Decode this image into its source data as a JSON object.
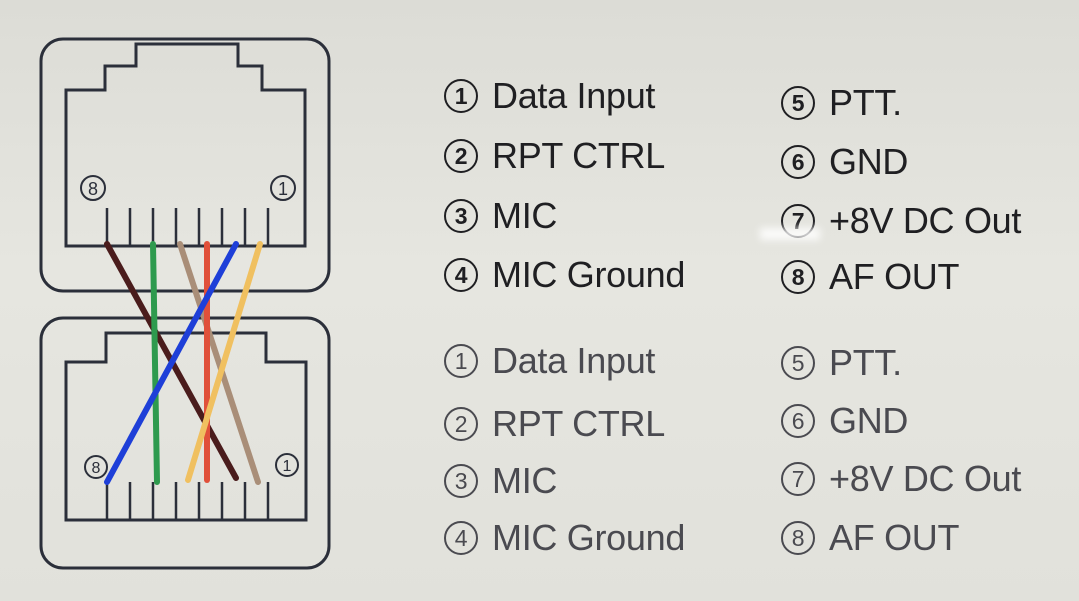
{
  "colors": {
    "background": "#e2e2dc",
    "outline": "#2b2f3a",
    "wire_dark_brown": "#4a1c1c",
    "wire_green": "#2e9a4e",
    "wire_tan": "#a98e78",
    "wire_red": "#e0503a",
    "wire_blue": "#1e3fd8",
    "wire_yellow": "#f0c060"
  },
  "connectors": [
    {
      "id": "top",
      "pin_left": "8",
      "pin_right": "1"
    },
    {
      "id": "bottom",
      "pin_left": "8",
      "pin_right": "1"
    }
  ],
  "pinout_top": [
    {
      "num": "1",
      "label": "Data Input"
    },
    {
      "num": "2",
      "label": "RPT CTRL"
    },
    {
      "num": "3",
      "label": "MIC"
    },
    {
      "num": "4",
      "label": "MIC Ground"
    },
    {
      "num": "5",
      "label": "PTT."
    },
    {
      "num": "6",
      "label": "GND"
    },
    {
      "num": "7",
      "label": "+8V DC Out"
    },
    {
      "num": "8",
      "label": "AF OUT"
    }
  ],
  "pinout_bottom": [
    {
      "num": "1",
      "label": "Data Input"
    },
    {
      "num": "2",
      "label": "RPT CTRL"
    },
    {
      "num": "3",
      "label": "MIC"
    },
    {
      "num": "4",
      "label": "MIC Ground"
    },
    {
      "num": "5",
      "label": "PTT."
    },
    {
      "num": "6",
      "label": "GND"
    },
    {
      "num": "7",
      "label": "+8V DC Out"
    },
    {
      "num": "8",
      "label": "AF OUT"
    }
  ],
  "wiring": [
    {
      "color": "wire_dark_brown",
      "from_pin": "8",
      "to_pin": "2"
    },
    {
      "color": "wire_green",
      "from_pin": "7",
      "to_pin": "7"
    },
    {
      "color": "wire_tan",
      "from_pin": "6",
      "to_pin": "1"
    },
    {
      "color": "wire_red",
      "from_pin": "5",
      "to_pin": "5"
    },
    {
      "color": "wire_blue",
      "from_pin": "4",
      "to_pin": "8"
    },
    {
      "color": "wire_yellow",
      "from_pin": "3",
      "to_pin": "6"
    }
  ]
}
